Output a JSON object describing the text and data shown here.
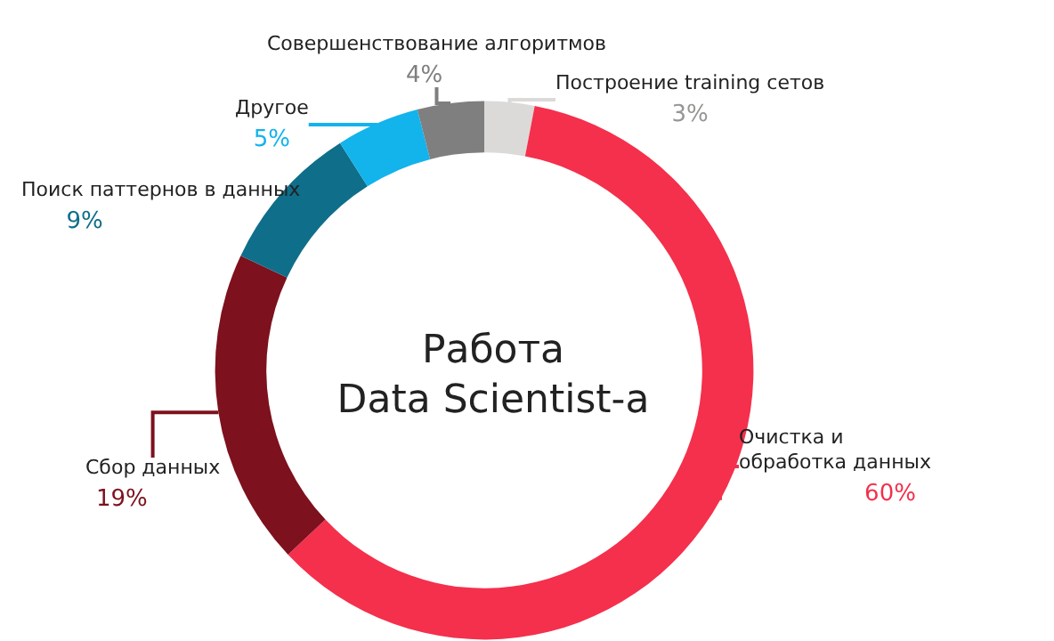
{
  "chart_data": {
    "type": "donut",
    "title": "Работа\nData Scientist-a",
    "categories": [
      "Построение training сетов",
      "Очистка и обработка данных",
      "Сбор данных",
      "Поиск паттернов в данных",
      "Другое",
      "Совершенствование алгоритмов"
    ],
    "values": [
      3,
      60,
      19,
      9,
      5,
      4
    ],
    "value_labels": [
      "3%",
      "60%",
      "19%",
      "9%",
      "5%",
      "4%"
    ],
    "colors": [
      "#dcdad8",
      "#f4304c",
      "#7d111d",
      "#0f6e8a",
      "#13b3ec",
      "#7f7f7f"
    ]
  }
}
